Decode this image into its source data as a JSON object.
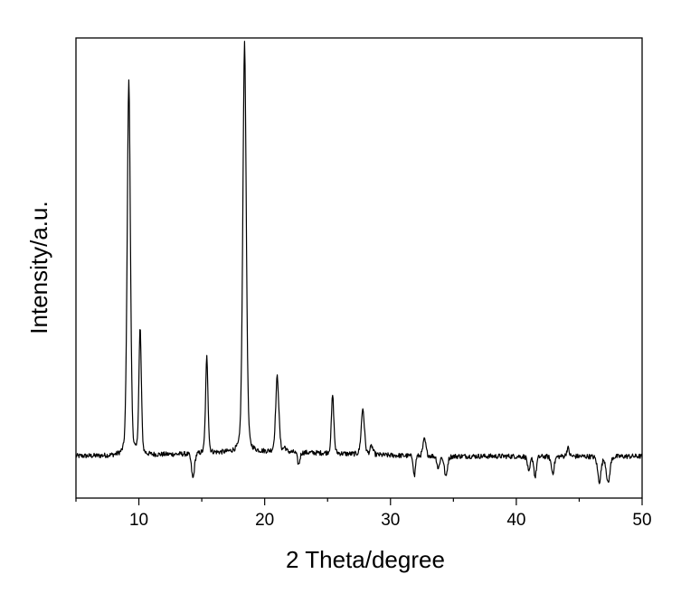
{
  "chart_data": {
    "type": "line",
    "title": "",
    "xlabel": "2 Theta/degree",
    "ylabel": "Intensity/a.u.",
    "xlim": [
      5,
      50
    ],
    "ylim": [
      0,
      1.1
    ],
    "xticks": [
      10,
      20,
      30,
      40,
      50
    ],
    "xtick_labels": [
      "10",
      "20",
      "30",
      "40",
      "50"
    ],
    "y_tick_labels_shown": false,
    "grid": false,
    "legend": "none",
    "line_color": "#000000",
    "baseline": 0.1,
    "series": [
      {
        "peaks": [
          {
            "x": 9.2,
            "y": 1.0,
            "w": 0.13
          },
          {
            "x": 10.1,
            "y": 0.4,
            "w": 0.1
          },
          {
            "x": 14.3,
            "y": 0.04,
            "w": 0.12
          },
          {
            "x": 15.4,
            "y": 0.33,
            "w": 0.1
          },
          {
            "x": 17.0,
            "y": 0.1,
            "w": 0.08
          },
          {
            "x": 18.4,
            "y": 1.08,
            "w": 0.14
          },
          {
            "x": 21.0,
            "y": 0.28,
            "w": 0.13
          },
          {
            "x": 21.6,
            "y": 0.11,
            "w": 0.1
          },
          {
            "x": 22.7,
            "y": 0.07,
            "w": 0.1
          },
          {
            "x": 25.4,
            "y": 0.24,
            "w": 0.1
          },
          {
            "x": 27.8,
            "y": 0.21,
            "w": 0.13
          },
          {
            "x": 28.5,
            "y": 0.12,
            "w": 0.12
          },
          {
            "x": 31.9,
            "y": 0.05,
            "w": 0.08
          },
          {
            "x": 32.7,
            "y": 0.14,
            "w": 0.12
          },
          {
            "x": 33.8,
            "y": 0.07,
            "w": 0.1
          },
          {
            "x": 34.4,
            "y": 0.05,
            "w": 0.12
          },
          {
            "x": 41.0,
            "y": 0.06,
            "w": 0.1
          },
          {
            "x": 41.5,
            "y": 0.05,
            "w": 0.1
          },
          {
            "x": 42.9,
            "y": 0.06,
            "w": 0.12
          },
          {
            "x": 44.1,
            "y": 0.12,
            "w": 0.1
          },
          {
            "x": 46.6,
            "y": 0.04,
            "w": 0.14
          },
          {
            "x": 47.3,
            "y": 0.035,
            "w": 0.14
          }
        ]
      }
    ]
  }
}
